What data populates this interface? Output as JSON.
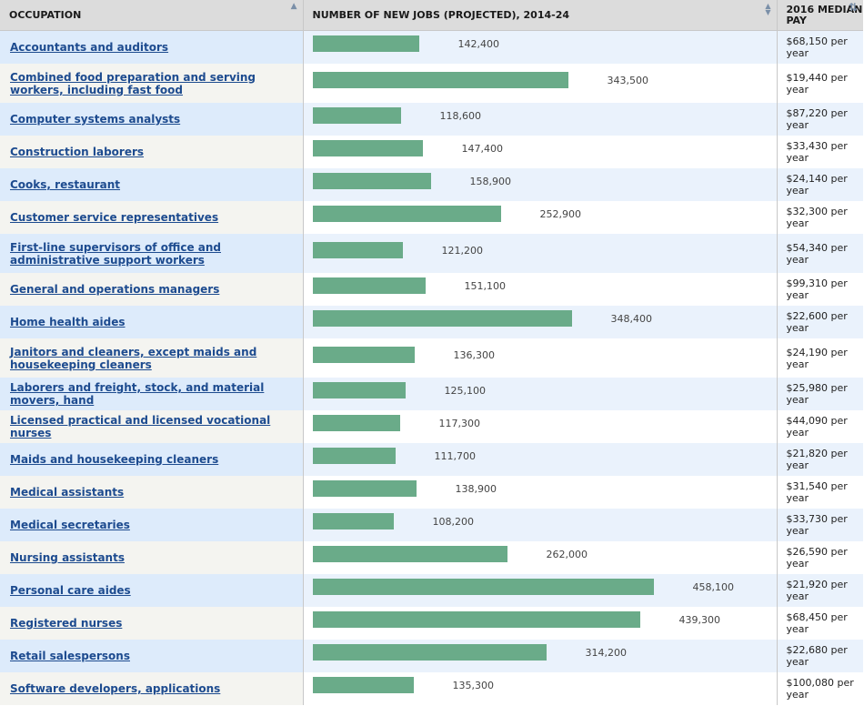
{
  "header": {
    "occupation": "OCCUPATION",
    "jobs": "NUMBER OF NEW JOBS (PROJECTED), 2014-24",
    "pay": "2016 MEDIAN PAY"
  },
  "icons": {
    "occupation_sort": "sort-ascending-icon",
    "jobs_sort": "sort-both-icon",
    "pay_sort": "sort-icon"
  },
  "colors": {
    "bar": "#6aab89",
    "link": "#1d4b8f",
    "header_bg": "#dcdcdc"
  },
  "chart_data": {
    "type": "bar",
    "title": "NUMBER OF NEW JOBS (PROJECTED), 2014-24",
    "xlabel": "",
    "ylabel": "",
    "scale_max": 458100,
    "rows": [
      {
        "occupation": "Accountants and auditors",
        "jobs": 142400,
        "jobs_label": "142,400",
        "pay": "$68,150 per year"
      },
      {
        "occupation": "Combined food preparation and serving workers, including fast food",
        "jobs": 343500,
        "jobs_label": "343,500",
        "pay": "$19,440 per year"
      },
      {
        "occupation": "Computer systems analysts",
        "jobs": 118600,
        "jobs_label": "118,600",
        "pay": "$87,220 per year"
      },
      {
        "occupation": "Construction laborers",
        "jobs": 147400,
        "jobs_label": "147,400",
        "pay": "$33,430 per year"
      },
      {
        "occupation": "Cooks, restaurant",
        "jobs": 158900,
        "jobs_label": "158,900",
        "pay": "$24,140 per year"
      },
      {
        "occupation": "Customer service representatives",
        "jobs": 252900,
        "jobs_label": "252,900",
        "pay": "$32,300 per year"
      },
      {
        "occupation": "First-line supervisors of office and administrative support workers",
        "jobs": 121200,
        "jobs_label": "121,200",
        "pay": "$54,340 per year"
      },
      {
        "occupation": "General and operations managers",
        "jobs": 151100,
        "jobs_label": "151,100",
        "pay": "$99,310 per year"
      },
      {
        "occupation": "Home health aides",
        "jobs": 348400,
        "jobs_label": "348,400",
        "pay": "$22,600 per year"
      },
      {
        "occupation": "Janitors and cleaners, except maids and housekeeping cleaners",
        "jobs": 136300,
        "jobs_label": "136,300",
        "pay": "$24,190 per year"
      },
      {
        "occupation": "Laborers and freight, stock, and material movers, hand",
        "jobs": 125100,
        "jobs_label": "125,100",
        "pay": "$25,980 per year"
      },
      {
        "occupation": "Licensed practical and licensed vocational nurses",
        "jobs": 117300,
        "jobs_label": "117,300",
        "pay": "$44,090 per year"
      },
      {
        "occupation": "Maids and housekeeping cleaners",
        "jobs": 111700,
        "jobs_label": "111,700",
        "pay": "$21,820 per year"
      },
      {
        "occupation": "Medical assistants",
        "jobs": 138900,
        "jobs_label": "138,900",
        "pay": "$31,540 per year"
      },
      {
        "occupation": "Medical secretaries",
        "jobs": 108200,
        "jobs_label": "108,200",
        "pay": "$33,730 per year"
      },
      {
        "occupation": "Nursing assistants",
        "jobs": 262000,
        "jobs_label": "262,000",
        "pay": "$26,590 per year"
      },
      {
        "occupation": "Personal care aides",
        "jobs": 458100,
        "jobs_label": "458,100",
        "pay": "$21,920 per year"
      },
      {
        "occupation": "Registered nurses",
        "jobs": 439300,
        "jobs_label": "439,300",
        "pay": "$68,450 per year"
      },
      {
        "occupation": "Retail salespersons",
        "jobs": 314200,
        "jobs_label": "314,200",
        "pay": "$22,680 per year"
      },
      {
        "occupation": "Software developers, applications",
        "jobs": 135300,
        "jobs_label": "135,300",
        "pay": "$100,080 per year"
      }
    ]
  }
}
